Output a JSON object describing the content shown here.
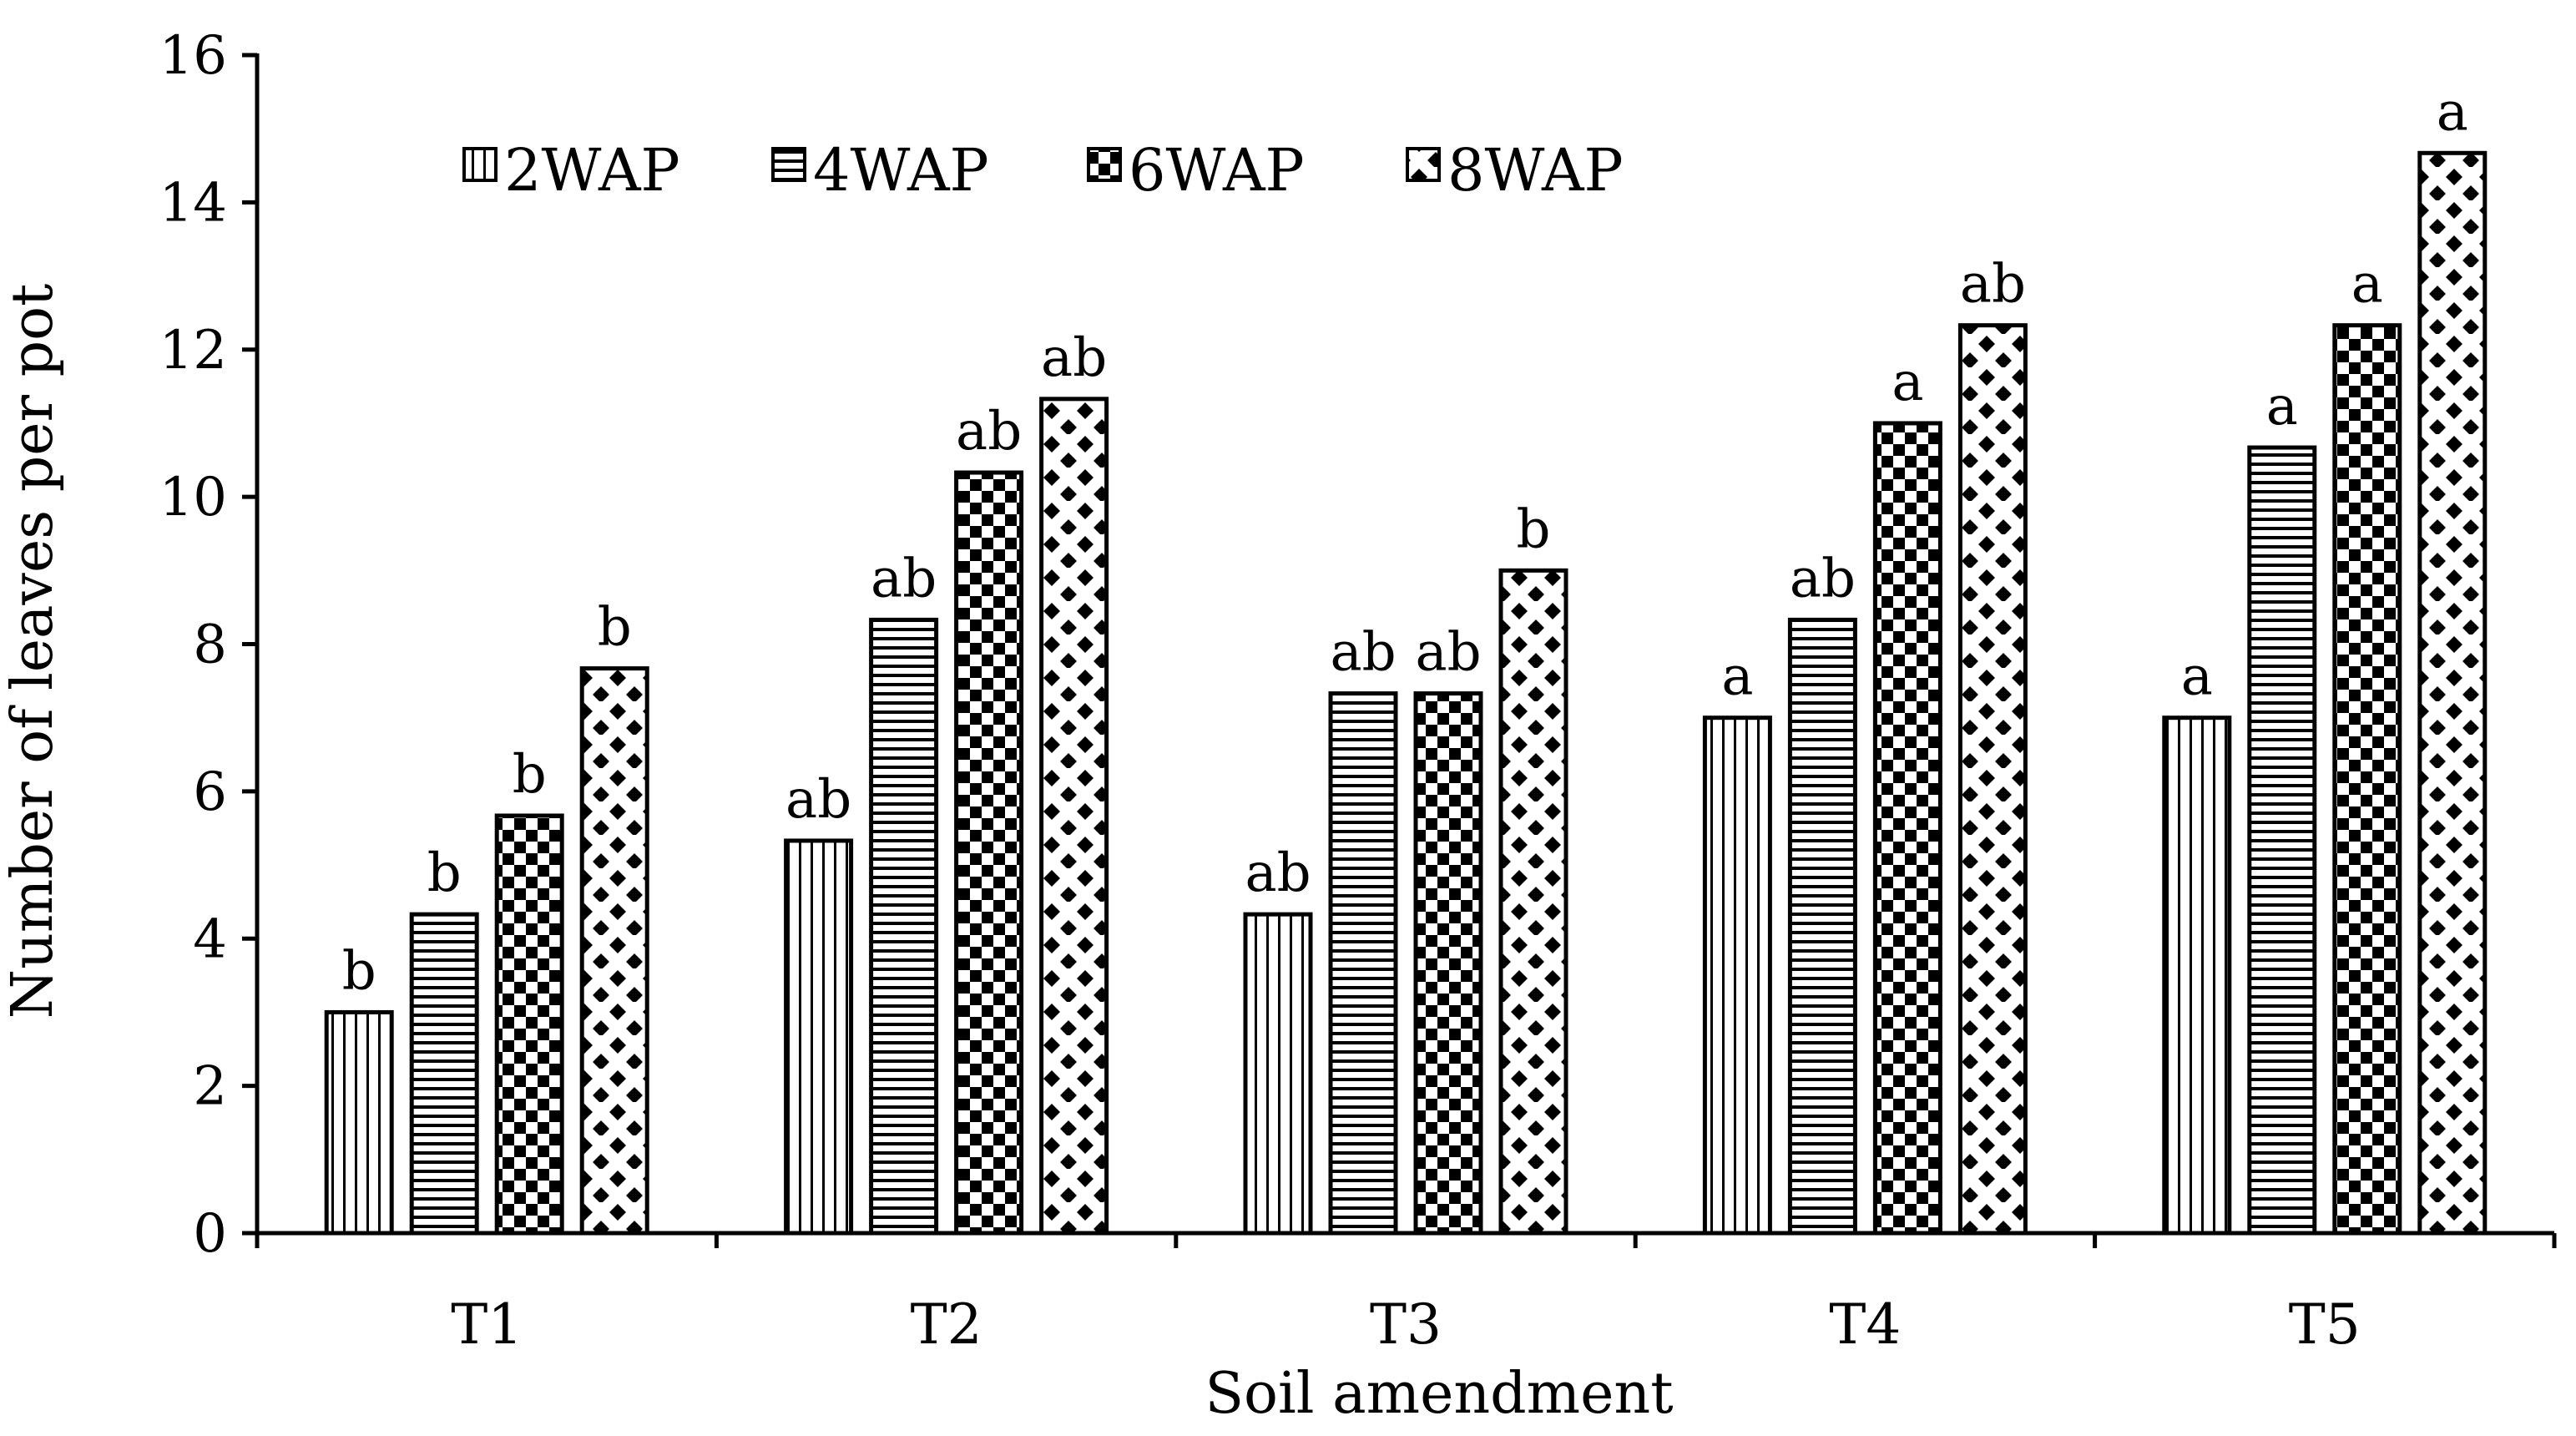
{
  "chart_data": {
    "type": "bar",
    "xlabel": "Soil amendment",
    "ylabel": "Number of leaves per pot",
    "ylim": [
      0,
      16
    ],
    "yticks": [
      0,
      2,
      4,
      6,
      8,
      10,
      12,
      14,
      16
    ],
    "grid": false,
    "legend_position": "top-left",
    "categories": [
      "T1",
      "T2",
      "T3",
      "T4",
      "T5"
    ],
    "series": [
      {
        "name": "2WAP",
        "pattern": "vertical-lines",
        "values": [
          3.0,
          5.33,
          4.33,
          7.0,
          7.0
        ],
        "labels": [
          "b",
          "ab",
          "ab",
          "a",
          "a"
        ]
      },
      {
        "name": "4WAP",
        "pattern": "horizontal-lines",
        "values": [
          4.33,
          8.33,
          7.33,
          8.33,
          10.67
        ],
        "labels": [
          "b",
          "ab",
          "ab",
          "ab",
          "a"
        ]
      },
      {
        "name": "6WAP",
        "pattern": "checkerboard",
        "values": [
          5.67,
          10.33,
          7.33,
          11.0,
          12.33
        ],
        "labels": [
          "b",
          "ab",
          "ab",
          "a",
          "a"
        ]
      },
      {
        "name": "8WAP",
        "pattern": "diamonds",
        "values": [
          7.67,
          11.33,
          9.0,
          12.33,
          14.67
        ],
        "labels": [
          "b",
          "ab",
          "b",
          "ab",
          "a"
        ]
      }
    ],
    "colors": {
      "bar_stroke": "#000000",
      "bar_fill": "#ffffff",
      "pattern_ink": "#000000"
    }
  }
}
